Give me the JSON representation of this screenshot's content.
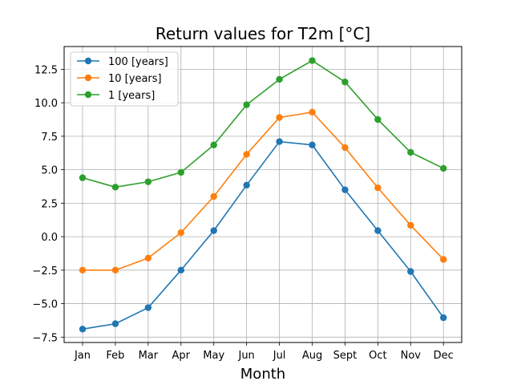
{
  "chart_data": {
    "type": "line",
    "title": "Return values for T2m [°C]",
    "xlabel": "Month",
    "ylabel": "",
    "categories": [
      "Jan",
      "Feb",
      "Mar",
      "Apr",
      "May",
      "Jun",
      "Jul",
      "Aug",
      "Sept",
      "Oct",
      "Nov",
      "Dec"
    ],
    "ylim": [
      -7.9,
      14.2
    ],
    "yticks": [
      -7.5,
      -5.0,
      -2.5,
      0.0,
      2.5,
      5.0,
      7.5,
      10.0,
      12.5
    ],
    "ytick_labels": [
      "−7.5",
      "−5.0",
      "−2.5",
      "0.0",
      "2.5",
      "5.0",
      "7.5",
      "10.0",
      "12.5"
    ],
    "grid": true,
    "legend_position": "top-left",
    "series": [
      {
        "name": "100 [years]",
        "color": "#1f77b4",
        "values": [
          -6.9,
          -6.5,
          -5.3,
          -2.5,
          0.45,
          3.85,
          7.1,
          6.85,
          3.5,
          0.45,
          -2.6,
          -6.05
        ]
      },
      {
        "name": "10 [years]",
        "color": "#ff7f0e",
        "values": [
          -2.5,
          -2.5,
          -1.6,
          0.3,
          3.0,
          6.15,
          8.9,
          9.3,
          6.65,
          3.65,
          0.85,
          -1.7
        ]
      },
      {
        "name": "1 [years]",
        "color": "#2ca02c",
        "values": [
          4.4,
          3.7,
          4.1,
          4.8,
          6.85,
          9.85,
          11.75,
          13.15,
          11.55,
          8.75,
          6.3,
          5.1
        ]
      }
    ]
  }
}
